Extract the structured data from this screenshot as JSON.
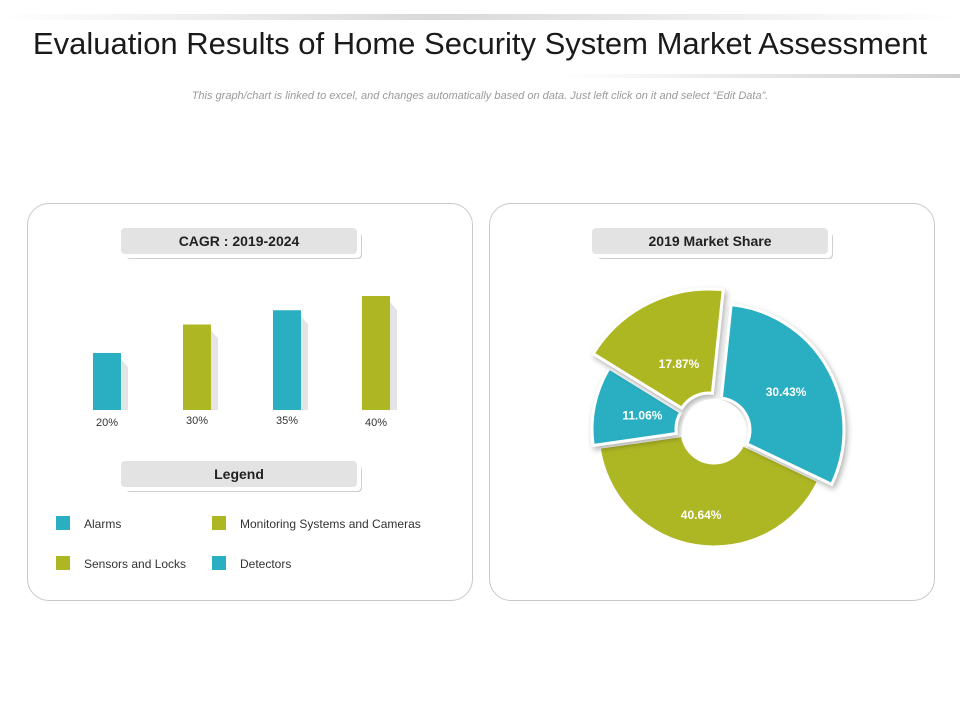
{
  "page": {
    "title": "Evaluation Results of Home Security System Market Assessment",
    "subtitle": "This graph/chart is linked to excel, and changes automatically based on data. Just left click on it and select “Edit Data”."
  },
  "colors": {
    "teal": "#2aafc2",
    "olive": "#adb724"
  },
  "legend": {
    "title": "Legend",
    "items": [
      {
        "label": "Alarms",
        "color": "#2aafc2"
      },
      {
        "label": "Monitoring Systems and Cameras",
        "color": "#adb724"
      },
      {
        "label": "Sensors and Locks",
        "color": "#adb724"
      },
      {
        "label": "Detectors",
        "color": "#2aafc2"
      }
    ]
  },
  "chart_data": [
    {
      "type": "bar",
      "title": "CAGR : 2019-2024",
      "categories": [
        "Alarms",
        "Sensors and Locks",
        "Detectors",
        "Monitoring Systems and Cameras"
      ],
      "values": [
        20,
        30,
        35,
        40
      ],
      "value_labels": [
        "20%",
        "30%",
        "35%",
        "40%"
      ],
      "colors": [
        "#2aafc2",
        "#adb724",
        "#2aafc2",
        "#adb724"
      ],
      "ylim": [
        0,
        40
      ],
      "grid": false
    },
    {
      "type": "pie",
      "title": "2019 Market Share",
      "labels": [
        "Detectors",
        "Monitoring Systems and Cameras",
        "Alarms",
        "Sensors and Locks"
      ],
      "values": [
        30.43,
        40.64,
        11.06,
        17.87
      ],
      "value_labels": [
        "30.43%",
        "40.64%",
        "11.06%",
        "17.87%"
      ],
      "colors": [
        "#2aafc2",
        "#adb724",
        "#2aafc2",
        "#adb724"
      ],
      "donut": true
    }
  ]
}
